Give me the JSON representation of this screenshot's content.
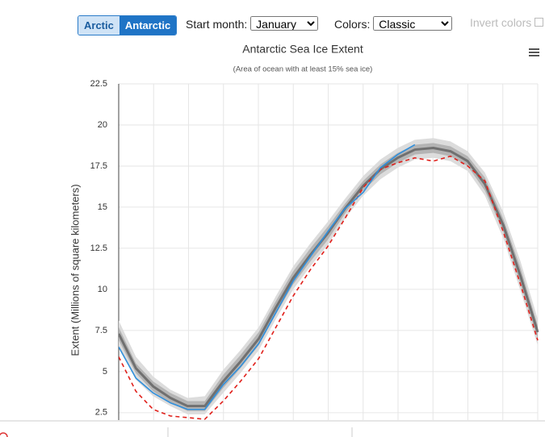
{
  "controls": {
    "hemisphere_buttons": [
      "Arctic",
      "Antarctic"
    ],
    "start_month_label": "Start month:",
    "start_month": "January",
    "colors_label": "Colors:",
    "colors": "Classic",
    "invert_label": "Invert colors"
  },
  "chart_data": {
    "type": "line",
    "title": "Antarctic Sea Ice Extent",
    "subtitle": "(Area of ocean with at least 15% sea ice)",
    "y_label": "Extent (Millions of square kilometers)",
    "x": [
      0,
      15,
      30,
      45,
      60,
      75,
      91,
      106,
      122,
      137,
      152,
      167,
      182,
      197,
      213,
      228,
      243,
      258,
      274,
      289,
      304,
      319,
      335,
      350,
      365
    ],
    "xlim": [
      0,
      365
    ],
    "ylim": [
      2.05,
      22.5
    ],
    "yticks": [
      2.5,
      5,
      7.5,
      10,
      12.5,
      15,
      17.5,
      20,
      22.5
    ],
    "grid": true,
    "bands": [
      {
        "color": "#dcdcdc",
        "high": [
          8.1,
          5.9,
          4.7,
          3.9,
          3.4,
          3.5,
          5.1,
          6.3,
          7.7,
          9.6,
          11.4,
          12.8,
          14.1,
          15.5,
          16.9,
          17.9,
          18.6,
          19.1,
          19.2,
          19.0,
          18.4,
          17.1,
          14.7,
          11.7,
          8.2
        ],
        "low": [
          6.5,
          4.5,
          3.5,
          2.9,
          2.4,
          2.4,
          3.7,
          4.9,
          6.3,
          8.2,
          10.0,
          11.4,
          12.7,
          14.3,
          15.7,
          16.7,
          17.4,
          17.9,
          18.0,
          17.8,
          17.2,
          15.7,
          13.1,
          9.9,
          6.6
        ]
      },
      {
        "color": "#b4b4b4",
        "high": [
          7.7,
          5.5,
          4.4,
          3.7,
          3.2,
          3.2,
          4.8,
          6.0,
          7.4,
          9.3,
          11.1,
          12.5,
          13.8,
          15.2,
          16.6,
          17.6,
          18.3,
          18.8,
          18.9,
          18.7,
          18.1,
          16.8,
          14.3,
          11.3,
          7.8
        ],
        "low": [
          6.9,
          4.9,
          3.8,
          3.1,
          2.6,
          2.6,
          4.0,
          5.2,
          6.6,
          8.5,
          10.3,
          11.7,
          13.0,
          14.6,
          16.0,
          17.0,
          17.7,
          18.2,
          18.3,
          18.1,
          17.5,
          16.0,
          13.5,
          10.3,
          7.0
        ]
      }
    ],
    "series": [
      {
        "color": "#707070",
        "dash": false,
        "width": 3,
        "values": [
          7.3,
          5.2,
          4.1,
          3.4,
          2.9,
          2.9,
          4.4,
          5.6,
          7.0,
          8.9,
          10.7,
          12.1,
          13.4,
          14.9,
          16.3,
          17.3,
          18.0,
          18.5,
          18.6,
          18.4,
          17.8,
          16.4,
          13.9,
          10.8,
          7.4
        ]
      },
      {
        "color": "#e0201b",
        "dash": true,
        "width": 1.6,
        "values": [
          5.9,
          3.8,
          2.7,
          2.3,
          2.2,
          2.1,
          3.2,
          4.4,
          5.8,
          7.7,
          9.6,
          11.2,
          12.6,
          14.3,
          16.2,
          17.3,
          17.7,
          18.0,
          17.8,
          18.1,
          17.5,
          16.6,
          13.5,
          10.3,
          6.9
        ]
      },
      {
        "color": "#2f8fdc",
        "dash": false,
        "width": 1.6,
        "values": [
          6.5,
          4.6,
          3.7,
          3.1,
          2.7,
          2.7,
          4.2,
          5.3,
          6.7,
          8.6,
          10.5,
          12.0,
          13.5,
          14.9,
          15.9,
          17.4,
          18.2,
          18.8,
          null,
          null,
          null,
          null,
          null,
          null,
          null
        ]
      }
    ]
  }
}
